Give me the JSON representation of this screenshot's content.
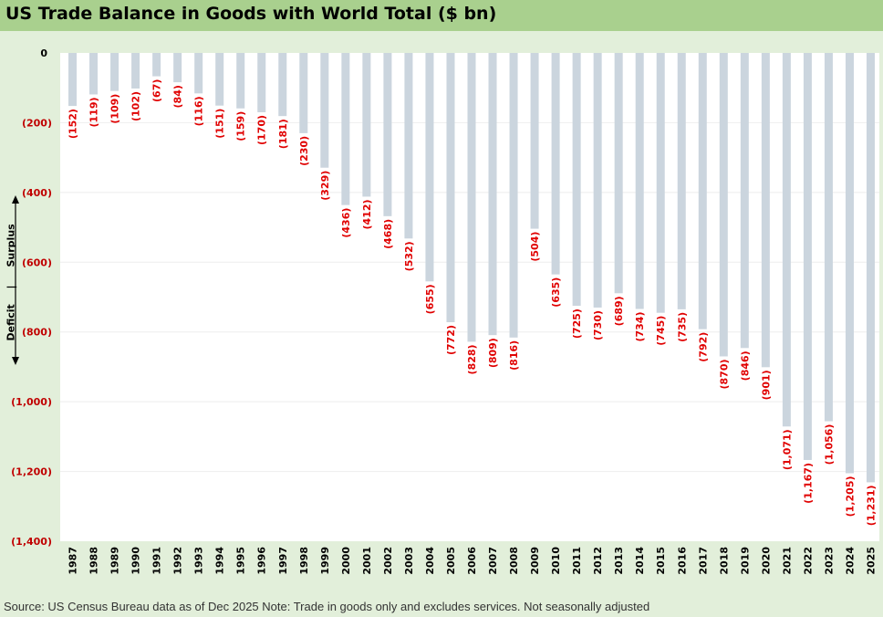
{
  "title": "US Trade Balance in Goods with World Total ($ bn)",
  "footer_note": "Source: US Census Bureau data as of Dec 2025 Note: Trade in goods only and excludes services. Not seasonally adjusted",
  "annotation": {
    "surplus_label": "Surplus",
    "deficit_label": "Deficit",
    "separator": "|"
  },
  "colors": {
    "title_bar": "#a9d08e",
    "background": "#e2efda",
    "bar": "#cbd5de",
    "data_label": "#e00000"
  },
  "chart_data": {
    "type": "bar",
    "title": "US Trade Balance in Goods with World Total ($ bn)",
    "xlabel": "",
    "ylabel": "",
    "ylim": [
      -1400,
      0
    ],
    "yticks": [
      0,
      -200,
      -400,
      -600,
      -800,
      -1000,
      -1200,
      -1400
    ],
    "ytick_labels": [
      "0",
      "(200)",
      "(400)",
      "(600)",
      "(800)",
      "(1,000)",
      "(1,200)",
      "(1,400)"
    ],
    "grid": true,
    "categories": [
      "1987",
      "1988",
      "1989",
      "1990",
      "1991",
      "1992",
      "1993",
      "1994",
      "1995",
      "1996",
      "1997",
      "1998",
      "1999",
      "2000",
      "2001",
      "2002",
      "2003",
      "2004",
      "2005",
      "2006",
      "2007",
      "2008",
      "2009",
      "2010",
      "2011",
      "2012",
      "2013",
      "2014",
      "2015",
      "2016",
      "2017",
      "2018",
      "2019",
      "2020",
      "2021",
      "2022",
      "2023",
      "2024",
      "2025"
    ],
    "values": [
      -152,
      -119,
      -109,
      -102,
      -67,
      -84,
      -116,
      -151,
      -159,
      -170,
      -181,
      -230,
      -329,
      -436,
      -412,
      -468,
      -532,
      -655,
      -772,
      -828,
      -809,
      -816,
      -504,
      -635,
      -725,
      -730,
      -689,
      -734,
      -745,
      -735,
      -792,
      -870,
      -846,
      -901,
      -1071,
      -1167,
      -1056,
      -1205,
      -1231
    ],
    "data_labels": [
      "(152)",
      "(119)",
      "(109)",
      "(102)",
      "(67)",
      "(84)",
      "(116)",
      "(151)",
      "(159)",
      "(170)",
      "(181)",
      "(230)",
      "(329)",
      "(436)",
      "(412)",
      "(468)",
      "(532)",
      "(655)",
      "(772)",
      "(828)",
      "(809)",
      "(816)",
      "(504)",
      "(635)",
      "(725)",
      "(730)",
      "(689)",
      "(734)",
      "(745)",
      "(735)",
      "(792)",
      "(870)",
      "(846)",
      "(901)",
      "(1,071)",
      "(1,167)",
      "(1,056)",
      "(1,205)",
      "(1,231)"
    ]
  }
}
